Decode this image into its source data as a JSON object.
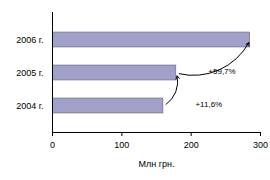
{
  "chart_data": {
    "type": "bar",
    "orientation": "horizontal",
    "categories": [
      "2004 г.",
      "2005 г.",
      "2006 г."
    ],
    "values": [
      160,
      178.6,
      285.2
    ],
    "color": "#a0a0c8",
    "x_label": "Млн грн.",
    "xlim": [
      0,
      300
    ],
    "xticks": [
      0,
      100,
      200,
      300
    ],
    "annotations": [
      {
        "text": "+11,6%"
      },
      {
        "text": "+59,7%"
      }
    ]
  }
}
